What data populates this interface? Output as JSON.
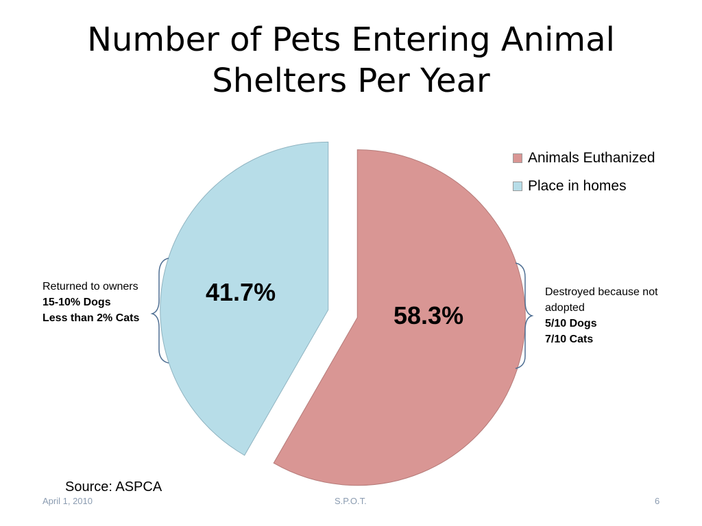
{
  "slide": {
    "title_line1": "Number of Pets Entering Animal",
    "title_line2": "Shelters Per Year",
    "source": "Source: ASPCA",
    "footer_date": "April 1, 2010",
    "footer_center": "S.P.O.T.",
    "footer_page": "6"
  },
  "annotations": {
    "left": {
      "line1": "Returned to owners",
      "line2": "15-10% Dogs",
      "line3": "Less than 2% Cats"
    },
    "right": {
      "line1": "Destroyed because not",
      "line2": "adopted",
      "line3": "5/10  Dogs",
      "line4": "7/10  Cats"
    }
  },
  "chart_data": {
    "type": "pie",
    "start_angle_deg": 0,
    "direction": "clockwise",
    "exploded": true,
    "legend_position": "top-right",
    "slices": [
      {
        "label": "Animals Euthanized",
        "value": 58.3,
        "data_label": "58.3%",
        "color": "#d99694"
      },
      {
        "label": "Place in homes",
        "value": 41.7,
        "data_label": "41.7%",
        "color": "#b7dde8"
      }
    ]
  }
}
